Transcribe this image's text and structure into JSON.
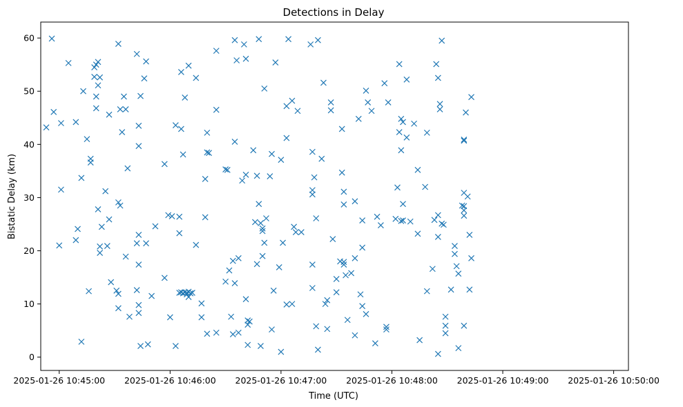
{
  "chart_data": {
    "type": "scatter",
    "title": "Detections in Delay",
    "xlabel": "Time (UTC)",
    "ylabel": "Bistatic Delay (km)",
    "marker": "x",
    "color": "#1f77b4",
    "grid": false,
    "xlim": [
      "2025-01-26 10:44:50",
      "2025-01-26 10:50:08"
    ],
    "ylim": [
      -2.5,
      63
    ],
    "xticks": [
      "2025-01-26 10:45:00",
      "2025-01-26 10:46:00",
      "2025-01-26 10:47:00",
      "2025-01-26 10:48:00",
      "2025-01-26 10:49:00",
      "2025-01-26 10:50:00"
    ],
    "yticks": [
      "0",
      "10",
      "20",
      "30",
      "40",
      "50",
      "60"
    ],
    "points": [
      {
        "x": "2025-01-26 10:44:53",
        "y": 43.2
      },
      {
        "x": "2025-01-26 10:44:56",
        "y": 59.9
      },
      {
        "x": "2025-01-26 10:44:57",
        "y": 46.1
      },
      {
        "x": "2025-01-26 10:45:00",
        "y": 21.0
      },
      {
        "x": "2025-01-26 10:45:01",
        "y": 44.0
      },
      {
        "x": "2025-01-26 10:45:01",
        "y": 31.5
      },
      {
        "x": "2025-01-26 10:45:05",
        "y": 55.3
      },
      {
        "x": "2025-01-26 10:45:09",
        "y": 44.2
      },
      {
        "x": "2025-01-26 10:45:09",
        "y": 22.0
      },
      {
        "x": "2025-01-26 10:45:10",
        "y": 24.1
      },
      {
        "x": "2025-01-26 10:45:12",
        "y": 2.9
      },
      {
        "x": "2025-01-26 10:45:12",
        "y": 33.7
      },
      {
        "x": "2025-01-26 10:45:13",
        "y": 50.0
      },
      {
        "x": "2025-01-26 10:45:15",
        "y": 41.0
      },
      {
        "x": "2025-01-26 10:45:16",
        "y": 12.4
      },
      {
        "x": "2025-01-26 10:45:17",
        "y": 37.3
      },
      {
        "x": "2025-01-26 10:45:17",
        "y": 36.6
      },
      {
        "x": "2025-01-26 10:45:19",
        "y": 54.5
      },
      {
        "x": "2025-01-26 10:45:19",
        "y": 52.7
      },
      {
        "x": "2025-01-26 10:45:20",
        "y": 55.0
      },
      {
        "x": "2025-01-26 10:45:20",
        "y": 49.0
      },
      {
        "x": "2025-01-26 10:45:20",
        "y": 46.8
      },
      {
        "x": "2025-01-26 10:45:21",
        "y": 27.8
      },
      {
        "x": "2025-01-26 10:45:21",
        "y": 55.5
      },
      {
        "x": "2025-01-26 10:45:21",
        "y": 51.1
      },
      {
        "x": "2025-01-26 10:45:22",
        "y": 52.6
      },
      {
        "x": "2025-01-26 10:45:22",
        "y": 20.8
      },
      {
        "x": "2025-01-26 10:45:22",
        "y": 19.6
      },
      {
        "x": "2025-01-26 10:45:23",
        "y": 24.5
      },
      {
        "x": "2025-01-26 10:45:25",
        "y": 31.2
      },
      {
        "x": "2025-01-26 10:45:26",
        "y": 20.9
      },
      {
        "x": "2025-01-26 10:45:27",
        "y": 25.9
      },
      {
        "x": "2025-01-26 10:45:28",
        "y": 14.1
      },
      {
        "x": "2025-01-26 10:45:27",
        "y": 45.6
      },
      {
        "x": "2025-01-26 10:45:31",
        "y": 12.5
      },
      {
        "x": "2025-01-26 10:45:32",
        "y": 58.9
      },
      {
        "x": "2025-01-26 10:45:32",
        "y": 11.9
      },
      {
        "x": "2025-01-26 10:45:32",
        "y": 9.2
      },
      {
        "x": "2025-01-26 10:45:32",
        "y": 29.1
      },
      {
        "x": "2025-01-26 10:45:33",
        "y": 28.5
      },
      {
        "x": "2025-01-26 10:45:33",
        "y": 46.6
      },
      {
        "x": "2025-01-26 10:45:34",
        "y": 42.3
      },
      {
        "x": "2025-01-26 10:45:35",
        "y": 49.0
      },
      {
        "x": "2025-01-26 10:45:36",
        "y": 46.6
      },
      {
        "x": "2025-01-26 10:45:36",
        "y": 18.9
      },
      {
        "x": "2025-01-26 10:45:37",
        "y": 35.5
      },
      {
        "x": "2025-01-26 10:45:38",
        "y": 7.6
      },
      {
        "x": "2025-01-26 10:45:42",
        "y": 57.0
      },
      {
        "x": "2025-01-26 10:45:42",
        "y": 21.4
      },
      {
        "x": "2025-01-26 10:45:42",
        "y": 12.6
      },
      {
        "x": "2025-01-26 10:45:43",
        "y": 23.0
      },
      {
        "x": "2025-01-26 10:45:43",
        "y": 43.5
      },
      {
        "x": "2025-01-26 10:45:43",
        "y": 39.7
      },
      {
        "x": "2025-01-26 10:45:43",
        "y": 17.4
      },
      {
        "x": "2025-01-26 10:45:43",
        "y": 9.8
      },
      {
        "x": "2025-01-26 10:45:43",
        "y": 8.3
      },
      {
        "x": "2025-01-26 10:45:44",
        "y": 49.1
      },
      {
        "x": "2025-01-26 10:45:44",
        "y": 2.1
      },
      {
        "x": "2025-01-26 10:45:46",
        "y": 52.4
      },
      {
        "x": "2025-01-26 10:45:47",
        "y": 55.6
      },
      {
        "x": "2025-01-26 10:45:47",
        "y": 21.4
      },
      {
        "x": "2025-01-26 10:45:48",
        "y": 2.4
      },
      {
        "x": "2025-01-26 10:45:50",
        "y": 11.5
      },
      {
        "x": "2025-01-26 10:45:52",
        "y": 24.6
      },
      {
        "x": "2025-01-26 10:45:57",
        "y": 36.3
      },
      {
        "x": "2025-01-26 10:45:57",
        "y": 14.9
      },
      {
        "x": "2025-01-26 10:45:59",
        "y": 26.7
      },
      {
        "x": "2025-01-26 10:46:00",
        "y": 7.5
      },
      {
        "x": "2025-01-26 10:46:01",
        "y": 26.5
      },
      {
        "x": "2025-01-26 10:46:03",
        "y": 2.1
      },
      {
        "x": "2025-01-26 10:46:03",
        "y": 43.6
      },
      {
        "x": "2025-01-26 10:46:05",
        "y": 26.4
      },
      {
        "x": "2025-01-26 10:46:05",
        "y": 23.3
      },
      {
        "x": "2025-01-26 10:46:05",
        "y": 12.1
      },
      {
        "x": "2025-01-26 10:46:06",
        "y": 53.6
      },
      {
        "x": "2025-01-26 10:46:06",
        "y": 42.9
      },
      {
        "x": "2025-01-26 10:46:06",
        "y": 12.2
      },
      {
        "x": "2025-01-26 10:46:07",
        "y": 38.1
      },
      {
        "x": "2025-01-26 10:46:07",
        "y": 12.0
      },
      {
        "x": "2025-01-26 10:46:08",
        "y": 12.2
      },
      {
        "x": "2025-01-26 10:46:08",
        "y": 48.8
      },
      {
        "x": "2025-01-26 10:46:09",
        "y": 12.1
      },
      {
        "x": "2025-01-26 10:46:09",
        "y": 11.8
      },
      {
        "x": "2025-01-26 10:46:10",
        "y": 54.8
      },
      {
        "x": "2025-01-26 10:46:10",
        "y": 12.3
      },
      {
        "x": "2025-01-26 10:46:10",
        "y": 11.3
      },
      {
        "x": "2025-01-26 10:46:11",
        "y": 12.0
      },
      {
        "x": "2025-01-26 10:46:12",
        "y": 12.1
      },
      {
        "x": "2025-01-26 10:46:14",
        "y": 52.5
      },
      {
        "x": "2025-01-26 10:46:14",
        "y": 21.1
      },
      {
        "x": "2025-01-26 10:46:17",
        "y": 10.1
      },
      {
        "x": "2025-01-26 10:46:17",
        "y": 7.5
      },
      {
        "x": "2025-01-26 10:46:19",
        "y": 33.5
      },
      {
        "x": "2025-01-26 10:46:19",
        "y": 26.3
      },
      {
        "x": "2025-01-26 10:46:20",
        "y": 38.5
      },
      {
        "x": "2025-01-26 10:46:20",
        "y": 4.4
      },
      {
        "x": "2025-01-26 10:46:20",
        "y": 42.2
      },
      {
        "x": "2025-01-26 10:46:21",
        "y": 38.4
      },
      {
        "x": "2025-01-26 10:46:25",
        "y": 4.6
      },
      {
        "x": "2025-01-26 10:46:25",
        "y": 57.6
      },
      {
        "x": "2025-01-26 10:46:25",
        "y": 46.5
      },
      {
        "x": "2025-01-26 10:46:30",
        "y": 14.2
      },
      {
        "x": "2025-01-26 10:46:30",
        "y": 35.3
      },
      {
        "x": "2025-01-26 10:46:31",
        "y": 35.2
      },
      {
        "x": "2025-01-26 10:46:32",
        "y": 16.3
      },
      {
        "x": "2025-01-26 10:46:33",
        "y": 7.6
      },
      {
        "x": "2025-01-26 10:46:34",
        "y": 4.3
      },
      {
        "x": "2025-01-26 10:46:34",
        "y": 18.1
      },
      {
        "x": "2025-01-26 10:46:35",
        "y": 13.9
      },
      {
        "x": "2025-01-26 10:46:35",
        "y": 59.6
      },
      {
        "x": "2025-01-26 10:46:35",
        "y": 40.5
      },
      {
        "x": "2025-01-26 10:46:36",
        "y": 55.8
      },
      {
        "x": "2025-01-26 10:46:37",
        "y": 4.6
      },
      {
        "x": "2025-01-26 10:46:37",
        "y": 18.6
      },
      {
        "x": "2025-01-26 10:46:39",
        "y": 33.2
      },
      {
        "x": "2025-01-26 10:46:40",
        "y": 58.8
      },
      {
        "x": "2025-01-26 10:46:41",
        "y": 10.9
      },
      {
        "x": "2025-01-26 10:46:41",
        "y": 56.1
      },
      {
        "x": "2025-01-26 10:46:41",
        "y": 34.3
      },
      {
        "x": "2025-01-26 10:46:42",
        "y": 2.3
      },
      {
        "x": "2025-01-26 10:46:42",
        "y": 6.1
      },
      {
        "x": "2025-01-26 10:46:42",
        "y": 6.9
      },
      {
        "x": "2025-01-26 10:46:43",
        "y": 6.7
      },
      {
        "x": "2025-01-26 10:46:45",
        "y": 38.9
      },
      {
        "x": "2025-01-26 10:46:46",
        "y": 25.4
      },
      {
        "x": "2025-01-26 10:46:47",
        "y": 34.1
      },
      {
        "x": "2025-01-26 10:46:47",
        "y": 17.5
      },
      {
        "x": "2025-01-26 10:46:48",
        "y": 28.8
      },
      {
        "x": "2025-01-26 10:46:48",
        "y": 59.8
      },
      {
        "x": "2025-01-26 10:46:49",
        "y": 2.1
      },
      {
        "x": "2025-01-26 10:46:49",
        "y": 25.2
      },
      {
        "x": "2025-01-26 10:46:50",
        "y": 24.2
      },
      {
        "x": "2025-01-26 10:46:50",
        "y": 23.7
      },
      {
        "x": "2025-01-26 10:46:50",
        "y": 19.0
      },
      {
        "x": "2025-01-26 10:46:51",
        "y": 50.5
      },
      {
        "x": "2025-01-26 10:46:51",
        "y": 21.5
      },
      {
        "x": "2025-01-26 10:46:52",
        "y": 26.1
      },
      {
        "x": "2025-01-26 10:46:54",
        "y": 34.0
      },
      {
        "x": "2025-01-26 10:46:55",
        "y": 5.2
      },
      {
        "x": "2025-01-26 10:46:55",
        "y": 38.2
      },
      {
        "x": "2025-01-26 10:46:56",
        "y": 12.5
      },
      {
        "x": "2025-01-26 10:46:57",
        "y": 55.4
      },
      {
        "x": "2025-01-26 10:46:59",
        "y": 16.9
      },
      {
        "x": "2025-01-26 10:47:00",
        "y": 1.0
      },
      {
        "x": "2025-01-26 10:47:00",
        "y": 37.1
      },
      {
        "x": "2025-01-26 10:47:01",
        "y": 21.5
      },
      {
        "x": "2025-01-26 10:47:03",
        "y": 47.2
      },
      {
        "x": "2025-01-26 10:47:03",
        "y": 41.2
      },
      {
        "x": "2025-01-26 10:47:03",
        "y": 9.9
      },
      {
        "x": "2025-01-26 10:47:04",
        "y": 59.8
      },
      {
        "x": "2025-01-26 10:47:06",
        "y": 48.2
      },
      {
        "x": "2025-01-26 10:47:06",
        "y": 10.0
      },
      {
        "x": "2025-01-26 10:47:07",
        "y": 24.5
      },
      {
        "x": "2025-01-26 10:47:08",
        "y": 23.5
      },
      {
        "x": "2025-01-26 10:47:09",
        "y": 46.3
      },
      {
        "x": "2025-01-26 10:47:11",
        "y": 23.5
      },
      {
        "x": "2025-01-26 10:47:16",
        "y": 58.8
      },
      {
        "x": "2025-01-26 10:47:17",
        "y": 38.6
      },
      {
        "x": "2025-01-26 10:47:17",
        "y": 31.4
      },
      {
        "x": "2025-01-26 10:47:17",
        "y": 30.6
      },
      {
        "x": "2025-01-26 10:47:17",
        "y": 17.4
      },
      {
        "x": "2025-01-26 10:47:17",
        "y": 13.0
      },
      {
        "x": "2025-01-26 10:47:18",
        "y": 33.8
      },
      {
        "x": "2025-01-26 10:47:19",
        "y": 26.1
      },
      {
        "x": "2025-01-26 10:47:19",
        "y": 5.8
      },
      {
        "x": "2025-01-26 10:47:20",
        "y": 1.4
      },
      {
        "x": "2025-01-26 10:47:20",
        "y": 59.6
      },
      {
        "x": "2025-01-26 10:47:22",
        "y": 37.3
      },
      {
        "x": "2025-01-26 10:47:23",
        "y": 51.6
      },
      {
        "x": "2025-01-26 10:47:24",
        "y": 10.0
      },
      {
        "x": "2025-01-26 10:47:25",
        "y": 5.3
      },
      {
        "x": "2025-01-26 10:47:25",
        "y": 10.7
      },
      {
        "x": "2025-01-26 10:47:27",
        "y": 46.4
      },
      {
        "x": "2025-01-26 10:47:27",
        "y": 47.9
      },
      {
        "x": "2025-01-26 10:47:28",
        "y": 22.2
      },
      {
        "x": "2025-01-26 10:47:30",
        "y": 14.7
      },
      {
        "x": "2025-01-26 10:47:30",
        "y": 12.2
      },
      {
        "x": "2025-01-26 10:47:32",
        "y": 18.0
      },
      {
        "x": "2025-01-26 10:47:33",
        "y": 42.9
      },
      {
        "x": "2025-01-26 10:47:33",
        "y": 34.7
      },
      {
        "x": "2025-01-26 10:47:34",
        "y": 31.1
      },
      {
        "x": "2025-01-26 10:47:34",
        "y": 28.7
      },
      {
        "x": "2025-01-26 10:47:34",
        "y": 17.9
      },
      {
        "x": "2025-01-26 10:47:34",
        "y": 17.4
      },
      {
        "x": "2025-01-26 10:47:35",
        "y": 15.4
      },
      {
        "x": "2025-01-26 10:47:36",
        "y": 7.0
      },
      {
        "x": "2025-01-26 10:47:38",
        "y": 15.8
      },
      {
        "x": "2025-01-26 10:47:40",
        "y": 29.3
      },
      {
        "x": "2025-01-26 10:47:40",
        "y": 4.1
      },
      {
        "x": "2025-01-26 10:47:40",
        "y": 18.6
      },
      {
        "x": "2025-01-26 10:47:42",
        "y": 44.8
      },
      {
        "x": "2025-01-26 10:47:43",
        "y": 11.8
      },
      {
        "x": "2025-01-26 10:47:44",
        "y": 25.7
      },
      {
        "x": "2025-01-26 10:47:44",
        "y": 20.6
      },
      {
        "x": "2025-01-26 10:47:44",
        "y": 9.6
      },
      {
        "x": "2025-01-26 10:47:46",
        "y": 8.1
      },
      {
        "x": "2025-01-26 10:47:46",
        "y": 50.1
      },
      {
        "x": "2025-01-26 10:47:47",
        "y": 47.9
      },
      {
        "x": "2025-01-26 10:47:49",
        "y": 46.3
      },
      {
        "x": "2025-01-26 10:47:51",
        "y": 2.6
      },
      {
        "x": "2025-01-26 10:47:52",
        "y": 26.4
      },
      {
        "x": "2025-01-26 10:47:54",
        "y": 24.8
      },
      {
        "x": "2025-01-26 10:47:56",
        "y": 51.5
      },
      {
        "x": "2025-01-26 10:47:57",
        "y": 5.7
      },
      {
        "x": "2025-01-26 10:47:57",
        "y": 5.2
      },
      {
        "x": "2025-01-26 10:47:58",
        "y": 47.9
      },
      {
        "x": "2025-01-26 10:48:02",
        "y": 26.0
      },
      {
        "x": "2025-01-26 10:48:03",
        "y": 31.9
      },
      {
        "x": "2025-01-26 10:48:04",
        "y": 42.3
      },
      {
        "x": "2025-01-26 10:48:04",
        "y": 55.1
      },
      {
        "x": "2025-01-26 10:48:05",
        "y": 38.9
      },
      {
        "x": "2025-01-26 10:48:05",
        "y": 44.8
      },
      {
        "x": "2025-01-26 10:48:05",
        "y": 25.6
      },
      {
        "x": "2025-01-26 10:48:06",
        "y": 28.8
      },
      {
        "x": "2025-01-26 10:48:06",
        "y": 44.2
      },
      {
        "x": "2025-01-26 10:48:06",
        "y": 25.7
      },
      {
        "x": "2025-01-26 10:48:08",
        "y": 52.2
      },
      {
        "x": "2025-01-26 10:48:08",
        "y": 41.3
      },
      {
        "x": "2025-01-26 10:48:10",
        "y": 25.5
      },
      {
        "x": "2025-01-26 10:48:12",
        "y": 43.9
      },
      {
        "x": "2025-01-26 10:48:14",
        "y": 35.2
      },
      {
        "x": "2025-01-26 10:48:14",
        "y": 23.2
      },
      {
        "x": "2025-01-26 10:48:15",
        "y": 3.2
      },
      {
        "x": "2025-01-26 10:48:18",
        "y": 32.0
      },
      {
        "x": "2025-01-26 10:48:19",
        "y": 42.2
      },
      {
        "x": "2025-01-26 10:48:19",
        "y": 12.4
      },
      {
        "x": "2025-01-26 10:48:22",
        "y": 16.6
      },
      {
        "x": "2025-01-26 10:48:23",
        "y": 25.8
      },
      {
        "x": "2025-01-26 10:48:24",
        "y": 55.1
      },
      {
        "x": "2025-01-26 10:48:25",
        "y": 52.5
      },
      {
        "x": "2025-01-26 10:48:25",
        "y": 26.7
      },
      {
        "x": "2025-01-26 10:48:25",
        "y": 22.6
      },
      {
        "x": "2025-01-26 10:48:25",
        "y": 0.6
      },
      {
        "x": "2025-01-26 10:48:26",
        "y": 47.6
      },
      {
        "x": "2025-01-26 10:48:26",
        "y": 46.6
      },
      {
        "x": "2025-01-26 10:48:27",
        "y": 25.1
      },
      {
        "x": "2025-01-26 10:48:27",
        "y": 59.5
      },
      {
        "x": "2025-01-26 10:48:28",
        "y": 24.9
      },
      {
        "x": "2025-01-26 10:48:29",
        "y": 7.6
      },
      {
        "x": "2025-01-26 10:48:29",
        "y": 5.9
      },
      {
        "x": "2025-01-26 10:48:29",
        "y": 4.5
      },
      {
        "x": "2025-01-26 10:48:32",
        "y": 12.7
      },
      {
        "x": "2025-01-26 10:48:34",
        "y": 20.9
      },
      {
        "x": "2025-01-26 10:48:34",
        "y": 19.4
      },
      {
        "x": "2025-01-26 10:48:35",
        "y": 17.1
      },
      {
        "x": "2025-01-26 10:48:36",
        "y": 15.7
      },
      {
        "x": "2025-01-26 10:48:36",
        "y": 1.7
      },
      {
        "x": "2025-01-26 10:48:38",
        "y": 28.5
      },
      {
        "x": "2025-01-26 10:48:39",
        "y": 40.9
      },
      {
        "x": "2025-01-26 10:48:39",
        "y": 40.7
      },
      {
        "x": "2025-01-26 10:48:39",
        "y": 30.9
      },
      {
        "x": "2025-01-26 10:48:39",
        "y": 28.4
      },
      {
        "x": "2025-01-26 10:48:39",
        "y": 27.6
      },
      {
        "x": "2025-01-26 10:48:39",
        "y": 26.6
      },
      {
        "x": "2025-01-26 10:48:39",
        "y": 5.9
      },
      {
        "x": "2025-01-26 10:48:40",
        "y": 46.0
      },
      {
        "x": "2025-01-26 10:48:41",
        "y": 30.2
      },
      {
        "x": "2025-01-26 10:48:42",
        "y": 23.0
      },
      {
        "x": "2025-01-26 10:48:42",
        "y": 12.7
      },
      {
        "x": "2025-01-26 10:48:43",
        "y": 18.6
      },
      {
        "x": "2025-01-26 10:48:43",
        "y": 48.9
      }
    ]
  }
}
